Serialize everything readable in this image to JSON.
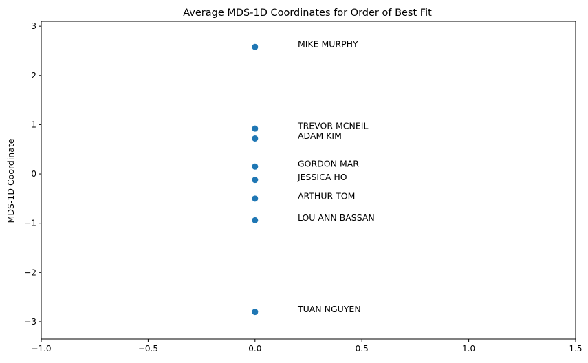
{
  "chart_data": {
    "type": "scatter",
    "title": "Average MDS-1D Coordinates for Order of Best Fit",
    "xlabel": "",
    "ylabel": "MDS-1D Coordinate",
    "xlim": [
      -1.0,
      1.5
    ],
    "ylim": [
      -3.35,
      3.1
    ],
    "xticks": [
      {
        "value": -1.0,
        "label": "−1.0"
      },
      {
        "value": -0.5,
        "label": "−0.5"
      },
      {
        "value": 0.0,
        "label": "0.0"
      },
      {
        "value": 0.5,
        "label": "0.5"
      },
      {
        "value": 1.0,
        "label": "1.0"
      },
      {
        "value": 1.5,
        "label": "1.5"
      }
    ],
    "yticks": [
      {
        "value": -3,
        "label": "−3"
      },
      {
        "value": -2,
        "label": "−2"
      },
      {
        "value": -1,
        "label": "−1"
      },
      {
        "value": 0,
        "label": "0"
      },
      {
        "value": 1,
        "label": "1"
      },
      {
        "value": 2,
        "label": "2"
      },
      {
        "value": 3,
        "label": "3"
      }
    ],
    "grid": false,
    "label_offset": {
      "x": 0.2,
      "y": 0.05
    },
    "marker_color": "#1f77b4",
    "points": [
      {
        "label": "MIKE MURPHY",
        "x": 0.0,
        "y": 2.58
      },
      {
        "label": "TREVOR MCNEIL",
        "x": 0.0,
        "y": 0.92
      },
      {
        "label": "ADAM KIM",
        "x": 0.0,
        "y": 0.72
      },
      {
        "label": "GORDON MAR",
        "x": 0.0,
        "y": 0.15
      },
      {
        "label": "JESSICA HO",
        "x": 0.0,
        "y": -0.12
      },
      {
        "label": "ARTHUR TOM",
        "x": 0.0,
        "y": -0.5
      },
      {
        "label": "LOU ANN BASSAN",
        "x": 0.0,
        "y": -0.94
      },
      {
        "label": "TUAN NGUYEN",
        "x": 0.0,
        "y": -2.8
      }
    ]
  }
}
